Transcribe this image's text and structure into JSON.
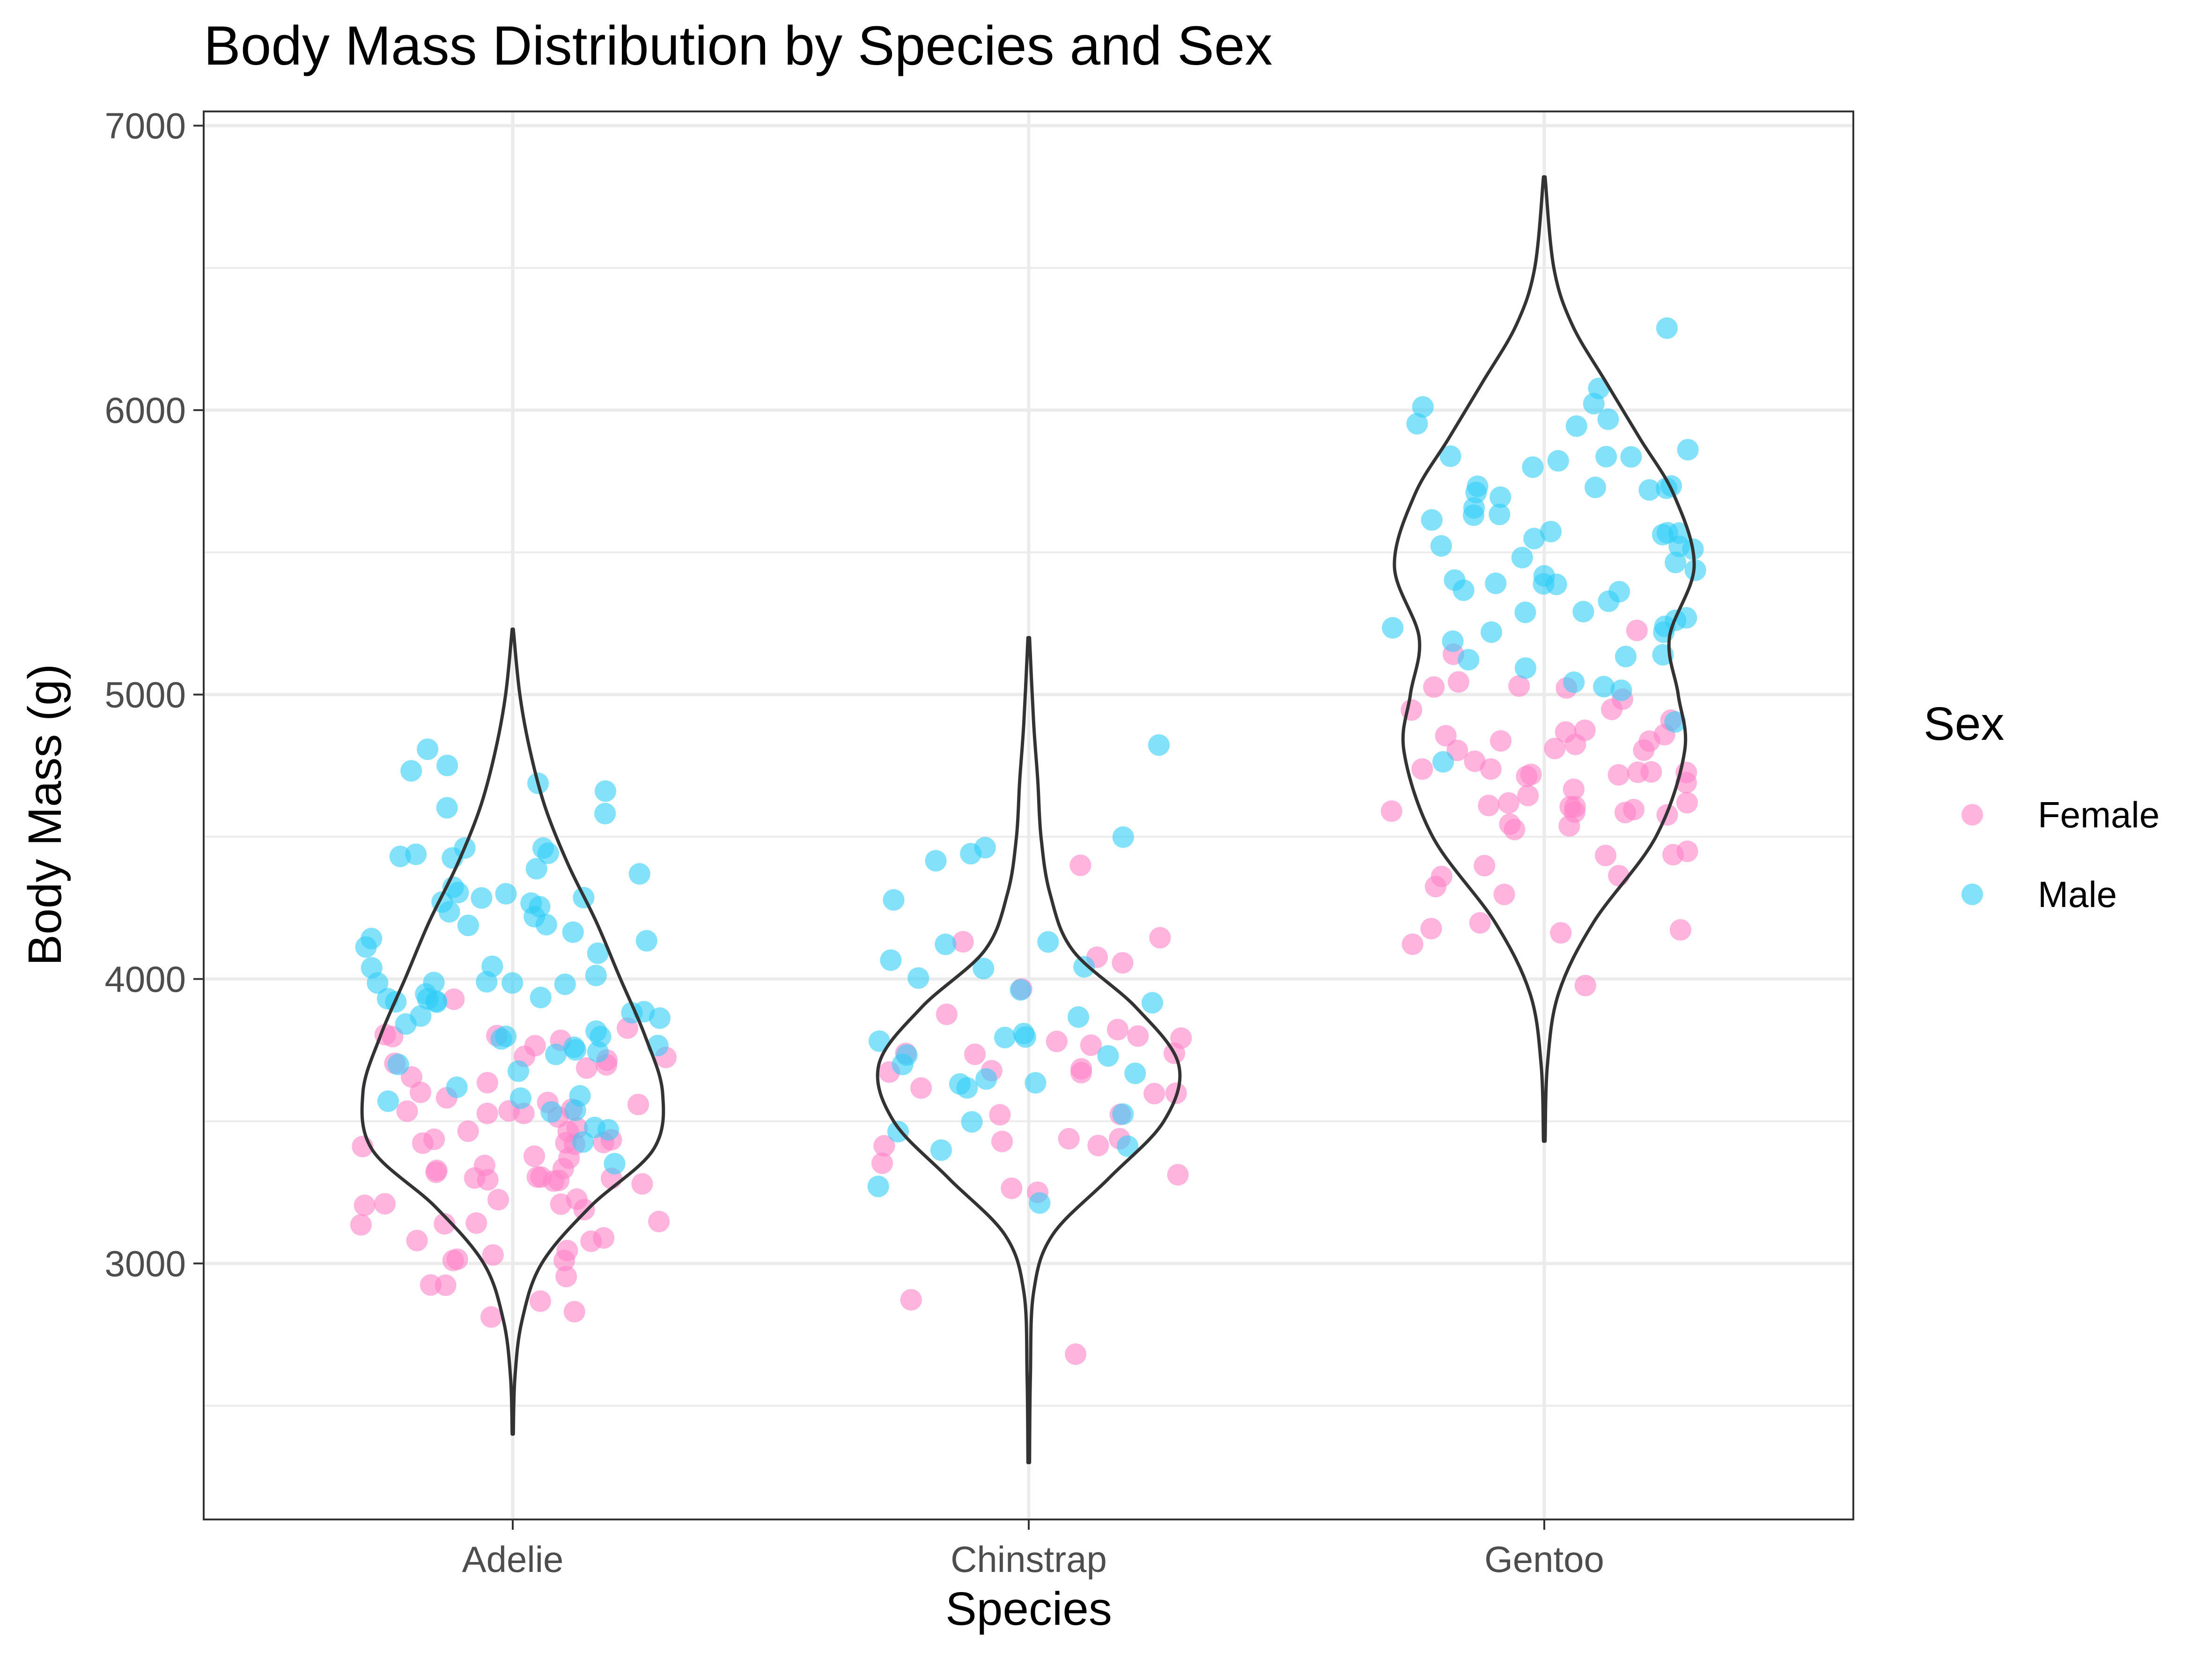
{
  "chart_data": {
    "type": "violin",
    "title": "Body Mass Distribution by Species and Sex",
    "xlabel": "Species",
    "ylabel": "Body Mass (g)",
    "categories": [
      "Adelie",
      "Chinstrap",
      "Gentoo"
    ],
    "yticks": [
      3000,
      4000,
      5000,
      6000,
      7000
    ],
    "ylim": [
      2100,
      7050
    ],
    "grid": true,
    "legend": {
      "title": "Sex",
      "position": "right",
      "entries": [
        {
          "name": "Female",
          "color": "#ff82c8"
        },
        {
          "name": "Male",
          "color": "#30cdf7"
        }
      ]
    },
    "colors": {
      "Female": "#ff82c8",
      "Male": "#30cdf7",
      "violin_outline": "#333333"
    },
    "violins": [
      {
        "category": "Adelie",
        "min": 2400,
        "max": 5230,
        "profile": [
          [
            2400,
            0.001
          ],
          [
            2600,
            0.004
          ],
          [
            2800,
            0.017
          ],
          [
            3000,
            0.053
          ],
          [
            3200,
            0.142
          ],
          [
            3400,
            0.257
          ],
          [
            3600,
            0.274
          ],
          [
            3800,
            0.242
          ],
          [
            4000,
            0.197
          ],
          [
            4200,
            0.153
          ],
          [
            4400,
            0.102
          ],
          [
            4600,
            0.06
          ],
          [
            4800,
            0.032
          ],
          [
            5000,
            0.013
          ],
          [
            5230,
            0.001
          ]
        ]
      },
      {
        "category": "Chinstrap",
        "min": 2300,
        "max": 5200,
        "profile": [
          [
            2300,
            0.001
          ],
          [
            2600,
            0.002
          ],
          [
            2900,
            0.006
          ],
          [
            3100,
            0.029
          ],
          [
            3300,
            0.098
          ],
          [
            3500,
            0.165
          ],
          [
            3700,
            0.183
          ],
          [
            3900,
            0.131
          ],
          [
            4100,
            0.054
          ],
          [
            4300,
            0.026
          ],
          [
            4500,
            0.015
          ],
          [
            4700,
            0.011
          ],
          [
            4900,
            0.006
          ],
          [
            5200,
            0.001
          ]
        ]
      },
      {
        "category": "Gentoo",
        "min": 3430,
        "max": 6820,
        "profile": [
          [
            3430,
            0.001
          ],
          [
            3700,
            0.004
          ],
          [
            3950,
            0.018
          ],
          [
            4200,
            0.062
          ],
          [
            4500,
            0.14
          ],
          [
            4800,
            0.176
          ],
          [
            5000,
            0.168
          ],
          [
            5200,
            0.157
          ],
          [
            5450,
            0.188
          ],
          [
            5700,
            0.163
          ],
          [
            5900,
            0.12
          ],
          [
            6100,
            0.077
          ],
          [
            6300,
            0.035
          ],
          [
            6500,
            0.012
          ],
          [
            6820,
            0.001
          ]
        ]
      }
    ],
    "points": [
      {
        "category": "Adelie",
        "sex": "Female",
        "mass": [
          3800,
          3250,
          3450,
          3625,
          3200,
          3700,
          3450,
          3325,
          3400,
          3800,
          3800,
          3200,
          3150,
          3250,
          3300,
          3325,
          3550,
          3300,
          3150,
          3100,
          3000,
          3450,
          3500,
          3450,
          2900,
          3550,
          2850,
          3150,
          3600,
          2850,
          3350,
          3050,
          3600,
          3550,
          3700,
          3700,
          3550,
          3200,
          3800,
          3350,
          3500,
          3600,
          3550,
          3400,
          3300,
          3700,
          2900,
          3725,
          3075,
          2925,
          3750,
          3175,
          3825,
          3200,
          3900,
          2900,
          3350,
          3150,
          3450,
          3050,
          3275,
          3050,
          3325,
          3500,
          3425,
          3175,
          3400,
          3400,
          3050,
          3000,
          3475,
          3450,
          3700
        ]
      },
      {
        "category": "Adelie",
        "sex": "Male",
        "mass": [
          3750,
          3650,
          4675,
          3800,
          4400,
          4500,
          4200,
          3600,
          3950,
          3800,
          3550,
          3950,
          3900,
          3900,
          4150,
          3950,
          4650,
          3900,
          4400,
          4600,
          3425,
          4150,
          4300,
          4050,
          3700,
          3800,
          3750,
          4400,
          4050,
          3950,
          4100,
          4450,
          3900,
          4150,
          4250,
          3900,
          4000,
          4700,
          4200,
          3550,
          3800,
          3950,
          4300,
          4450,
          4300,
          4350,
          4100,
          4725,
          4250,
          3550,
          3900,
          4775,
          4600,
          4275,
          4075,
          3775,
          3325,
          3500,
          3875,
          4000,
          4300,
          4000,
          3500,
          4475,
          3900,
          3975,
          4250,
          3475,
          3725,
          3650,
          4250,
          3750,
          4000
        ]
      },
      {
        "category": "Chinstrap",
        "sex": "Female",
        "mass": [
          3500,
          3900,
          3650,
          3525,
          3725,
          3950,
          3250,
          3750,
          4150,
          3700,
          3800,
          3775,
          3700,
          4050,
          3575,
          4050,
          3300,
          3700,
          3450,
          4400,
          3600,
          3400,
          2900,
          3800,
          3300,
          4150,
          3400,
          3800,
          3700,
          3450,
          3325,
          3400,
          2700,
          3650,
          3775
        ]
      },
      {
        "category": "Chinstrap",
        "sex": "Male",
        "mass": [
          3900,
          3650,
          3725,
          3750,
          3700,
          3775,
          4050,
          4050,
          3300,
          4400,
          3400,
          3400,
          4100,
          3800,
          4450,
          3800,
          3500,
          3950,
          3600,
          3550,
          4300,
          4800,
          4000,
          3650,
          4450,
          3800,
          3950,
          3250,
          4100,
          3700,
          3650,
          4000,
          3500,
          4500
        ]
      },
      {
        "category": "Gentoo",
        "sex": "Female",
        "mass": [
          4500,
          4450,
          4550,
          4800,
          4400,
          4650,
          4650,
          4200,
          4150,
          4800,
          5000,
          4400,
          5000,
          4600,
          4700,
          5050,
          5150,
          4950,
          4350,
          4400,
          4600,
          4750,
          4625,
          4750,
          4725,
          5200,
          4700,
          4575,
          4200,
          4600,
          4650,
          4300,
          5000,
          4850,
          4875,
          4625,
          4850,
          4975,
          4700,
          4575,
          5000,
          4100,
          4650,
          4375,
          4925,
          4850,
          4875,
          4200,
          4625,
          4750,
          4850,
          4700,
          3950,
          4300,
          4725,
          4625,
          4875,
          4850,
          4775
        ]
      },
      {
        "category": "Gentoo",
        "sex": "Male",
        "mass": [
          5700,
          5700,
          5400,
          5200,
          5150,
          5550,
          5850,
          6300,
          5350,
          5700,
          5050,
          5100,
          5650,
          5550,
          5250,
          6050,
          5400,
          5250,
          5350,
          5700,
          4750,
          5550,
          5400,
          5300,
          5300,
          6000,
          5550,
          5650,
          5850,
          5950,
          5200,
          5800,
          5300,
          5450,
          5550,
          5600,
          5500,
          5800,
          5600,
          5700,
          5100,
          5050,
          5650,
          5950,
          5950,
          5300,
          5400,
          5500,
          5000,
          6000,
          5500,
          5850,
          5400,
          5700,
          5750,
          4925,
          5200,
          5800,
          5350,
          5150,
          5400
        ]
      }
    ]
  }
}
